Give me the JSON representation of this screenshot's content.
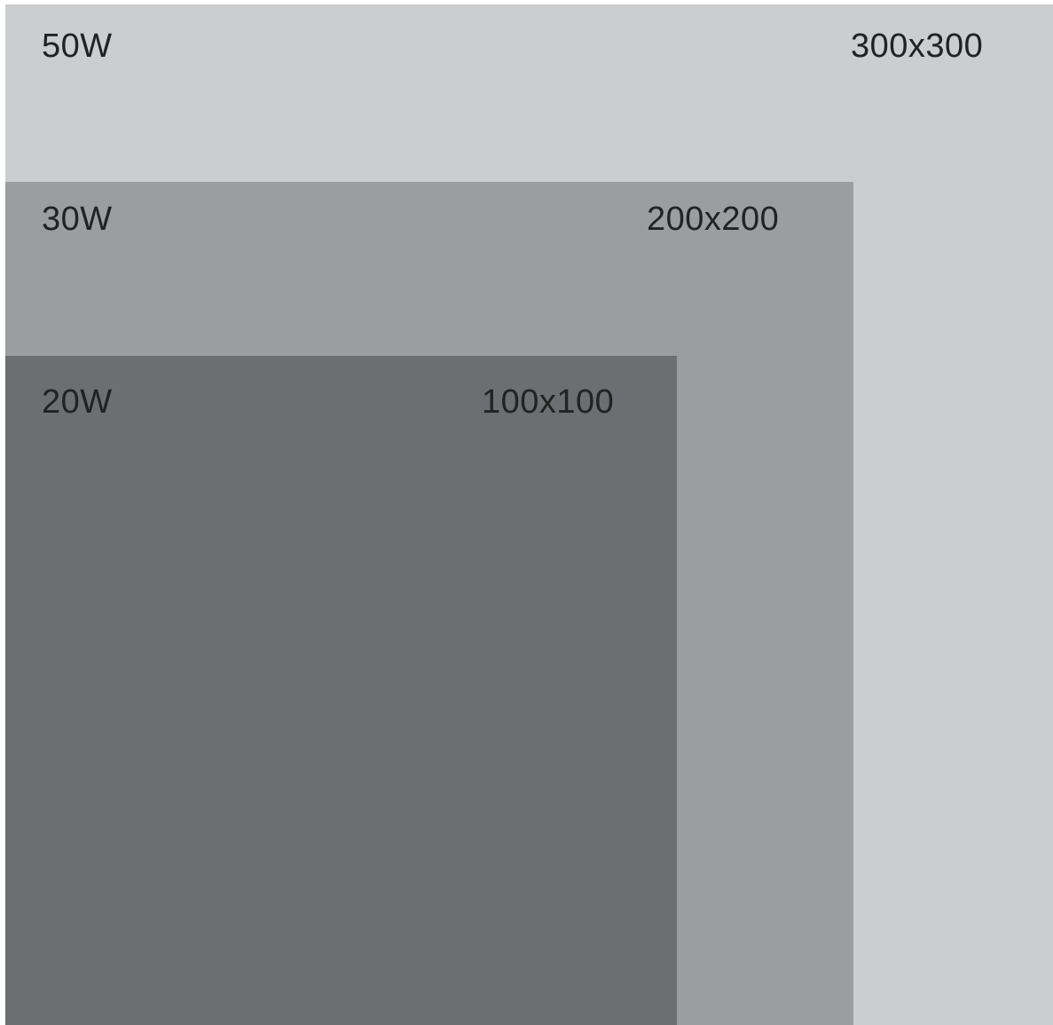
{
  "panels": [
    {
      "power": "50W",
      "size": "300x300",
      "color": "#cccdcf"
    },
    {
      "power": "30W",
      "size": "200x200",
      "color": "#9c9da1"
    },
    {
      "power": "20W",
      "size": "100x100",
      "color": "#6d6e72"
    }
  ]
}
